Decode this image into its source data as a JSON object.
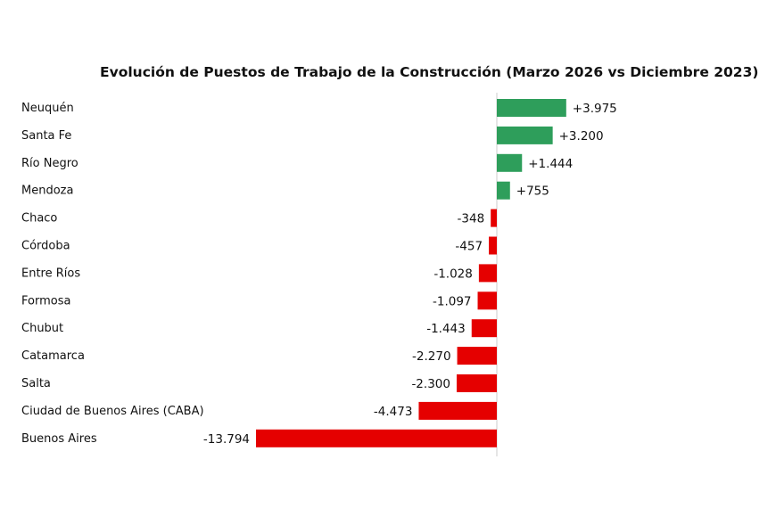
{
  "chart_data": {
    "type": "bar",
    "orientation": "horizontal",
    "title": "Evolución de Puestos de Trabajo de la Construcción (Marzo 2026 vs Diciembre 2023)",
    "xlabel": "",
    "ylabel": "",
    "grid": false,
    "legend": "none",
    "categories": [
      "Neuquén",
      "Santa Fe",
      "Río Negro",
      "Mendoza",
      "Chaco",
      "Córdoba",
      "Entre Ríos",
      "Formosa",
      "Chubut",
      "Catamarca",
      "Salta",
      "Ciudad de Buenos Aires (CABA)",
      "Buenos Aires"
    ],
    "values": [
      3975,
      3200,
      1444,
      755,
      -348,
      -457,
      -1028,
      -1097,
      -1443,
      -2270,
      -2300,
      -4473,
      -13794
    ],
    "value_labels": [
      "+3.975",
      "+3.200",
      "+1.444",
      "+755",
      "-348",
      "-457",
      "-1.028",
      "-1.097",
      "-1.443",
      "-2.270",
      "-2.300",
      "-4.473",
      "-13.794"
    ],
    "colors": {
      "positive": "#2e9e5b",
      "negative": "#e50000",
      "zero_line": "#cccccc"
    }
  }
}
